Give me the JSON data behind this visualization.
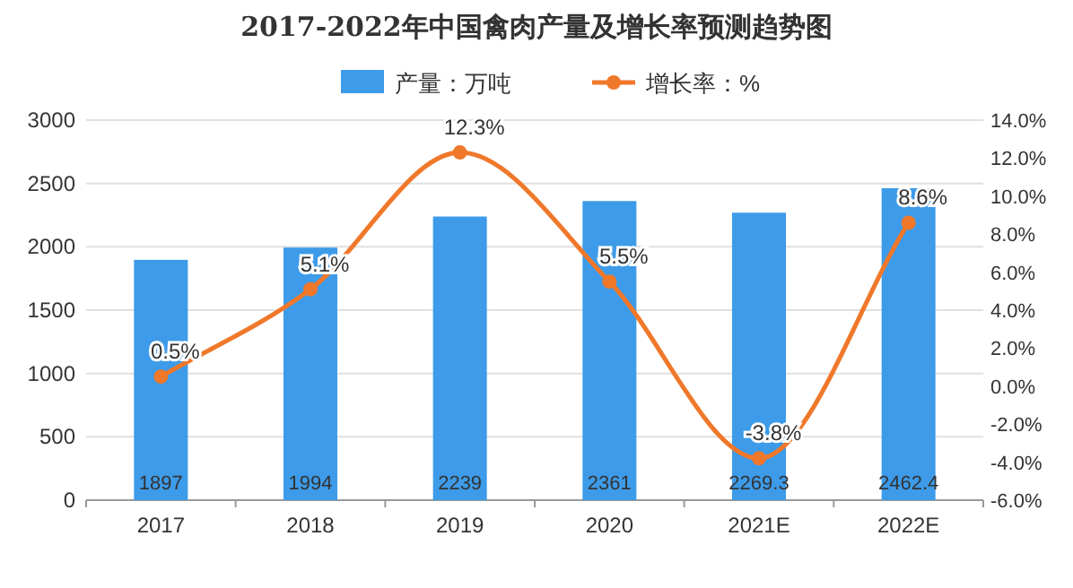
{
  "chart_data": {
    "type": "bar",
    "title": "2017-2022年中国禽肉产量及增长率预测趋势图",
    "categories": [
      "2017",
      "2018",
      "2019",
      "2020",
      "2021E",
      "2022E"
    ],
    "series": [
      {
        "name": "产量：万吨",
        "color": "#3d9be9",
        "values": [
          1897,
          1994,
          2239,
          2361,
          2269.3,
          2462.4
        ]
      },
      {
        "name": "增长率：%",
        "type": "line",
        "axis": "y2",
        "color": "#f0782a",
        "marker": "circle",
        "values": [
          0.5,
          5.1,
          12.3,
          5.5,
          -3.8,
          8.6
        ],
        "value_labels": [
          "0.5%",
          "5.1%",
          "12.3%",
          "5.5%",
          "-3.8%",
          "8.6%"
        ]
      }
    ],
    "ylim": [
      0,
      3000
    ],
    "yticks": [
      0,
      500,
      1000,
      1500,
      2000,
      2500,
      3000
    ],
    "y2lim": [
      -6,
      14
    ],
    "y2ticks": [
      {
        "value": -6,
        "label": "-6.0%"
      },
      {
        "value": -4,
        "label": "-4.0%"
      },
      {
        "value": -2,
        "label": "-2.0%"
      },
      {
        "value": 0,
        "label": "0.0%"
      },
      {
        "value": 2,
        "label": "2.0%"
      },
      {
        "value": 4,
        "label": "4.0%"
      },
      {
        "value": 6,
        "label": "6.0%"
      },
      {
        "value": 8,
        "label": "8.0%"
      },
      {
        "value": 10,
        "label": "10.0%"
      },
      {
        "value": 12,
        "label": "12.0%"
      },
      {
        "value": 14,
        "label": "14.0%"
      }
    ],
    "grid": "y",
    "legend": "top",
    "data_labels": true
  }
}
